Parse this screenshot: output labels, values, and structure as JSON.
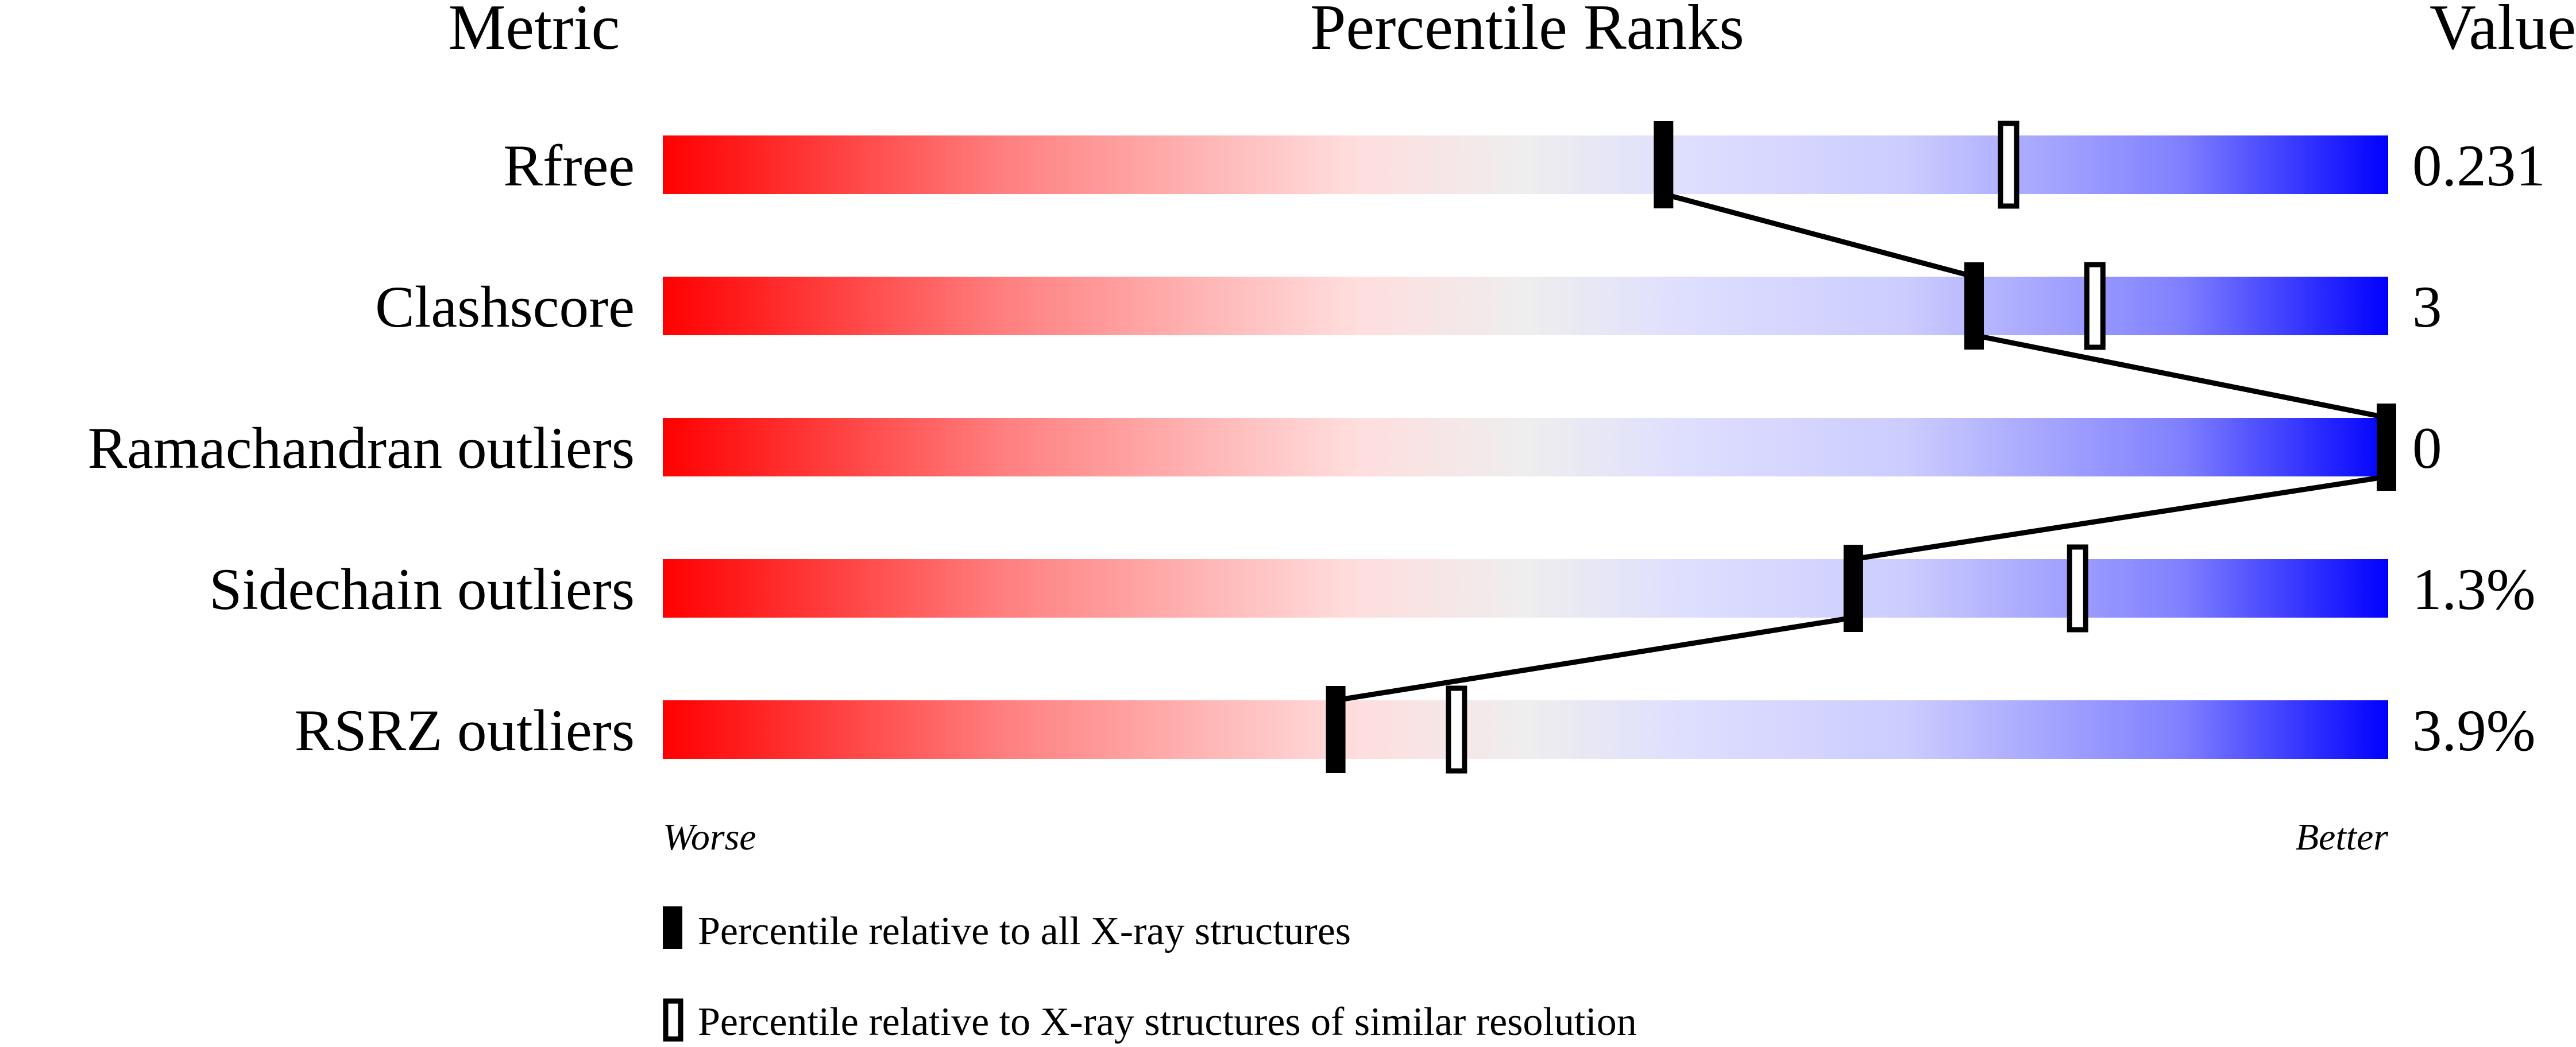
{
  "chart_data": {
    "type": "percentile-bar",
    "headers": {
      "metric": "Metric",
      "percentile": "Percentile Ranks",
      "value": "Value"
    },
    "xlim": [
      0,
      100
    ],
    "metrics": [
      {
        "name": "Rfree",
        "value": "0.231",
        "percentile_all": 58,
        "percentile_similar": 78
      },
      {
        "name": "Clashscore",
        "value": "3",
        "percentile_all": 76,
        "percentile_similar": 83
      },
      {
        "name": "Ramachandran outliers",
        "value": "0",
        "percentile_all": 100,
        "percentile_similar": null
      },
      {
        "name": "Sidechain outliers",
        "value": "1.3%",
        "percentile_all": 69,
        "percentile_similar": 82
      },
      {
        "name": "RSRZ outliers",
        "value": "3.9%",
        "percentile_all": 39,
        "percentile_similar": 46
      }
    ],
    "axis_labels": {
      "left": "Worse",
      "right": "Better"
    },
    "legend": [
      {
        "marker": "filled",
        "label": "Percentile relative to all X-ray structures"
      },
      {
        "marker": "open",
        "label": "Percentile relative to X-ray structures of similar resolution"
      }
    ],
    "gradient_colors": [
      "#ff0000",
      "#ff8080",
      "#ffdddd",
      "#eeeeee",
      "#ddddff",
      "#ccccff",
      "#8080ff",
      "#0000ff"
    ]
  }
}
